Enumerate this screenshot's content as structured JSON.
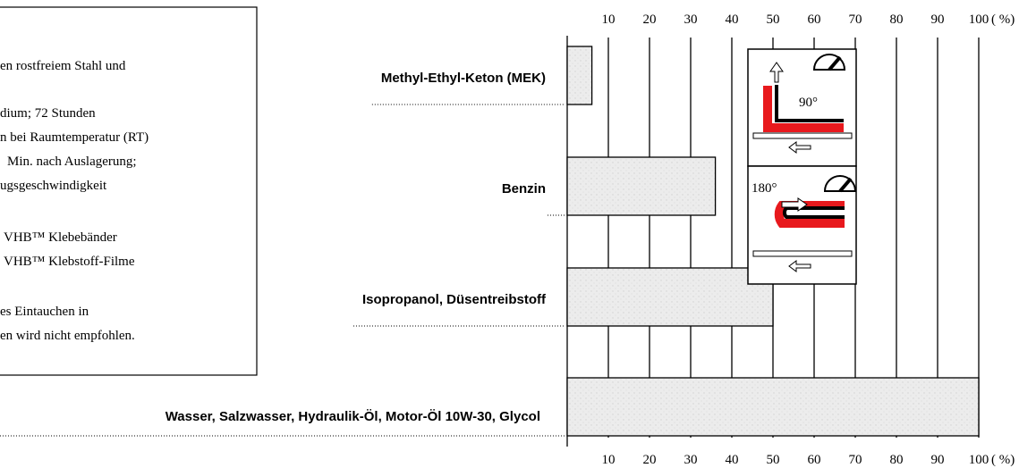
{
  "chart_data": {
    "type": "bar",
    "orientation": "horizontal",
    "categories": [
      "Methyl-Ethyl-Keton (MEK)",
      "Benzin",
      "Isopropanol, Düsentreibstoff",
      "Wasser, Salzwasser, Hydraulik-Öl, Motor-Öl 10W-30, Glycol"
    ],
    "values": [
      6,
      36,
      50,
      100
    ],
    "color": "#e6e6e6",
    "xlim": [
      0,
      100
    ],
    "xticks": [
      10,
      20,
      30,
      40,
      50,
      60,
      70,
      80,
      90,
      100
    ],
    "xlabel": "( %)",
    "grid": true,
    "notes": [
      "en rostfreiem Stahl und",
      "dium; 72 Stunden",
      "n bei Raumtemperatur  (RT)",
      "Min. nach Auslagerung;",
      "ugsgeschwindigkeit",
      "VHB™ Klebebänder",
      "VHB™ Klebstoff-Filme",
      "es Eintauchen in",
      "en wird nicht empfohlen."
    ],
    "diagram_labels": [
      "90°",
      "180°"
    ]
  }
}
